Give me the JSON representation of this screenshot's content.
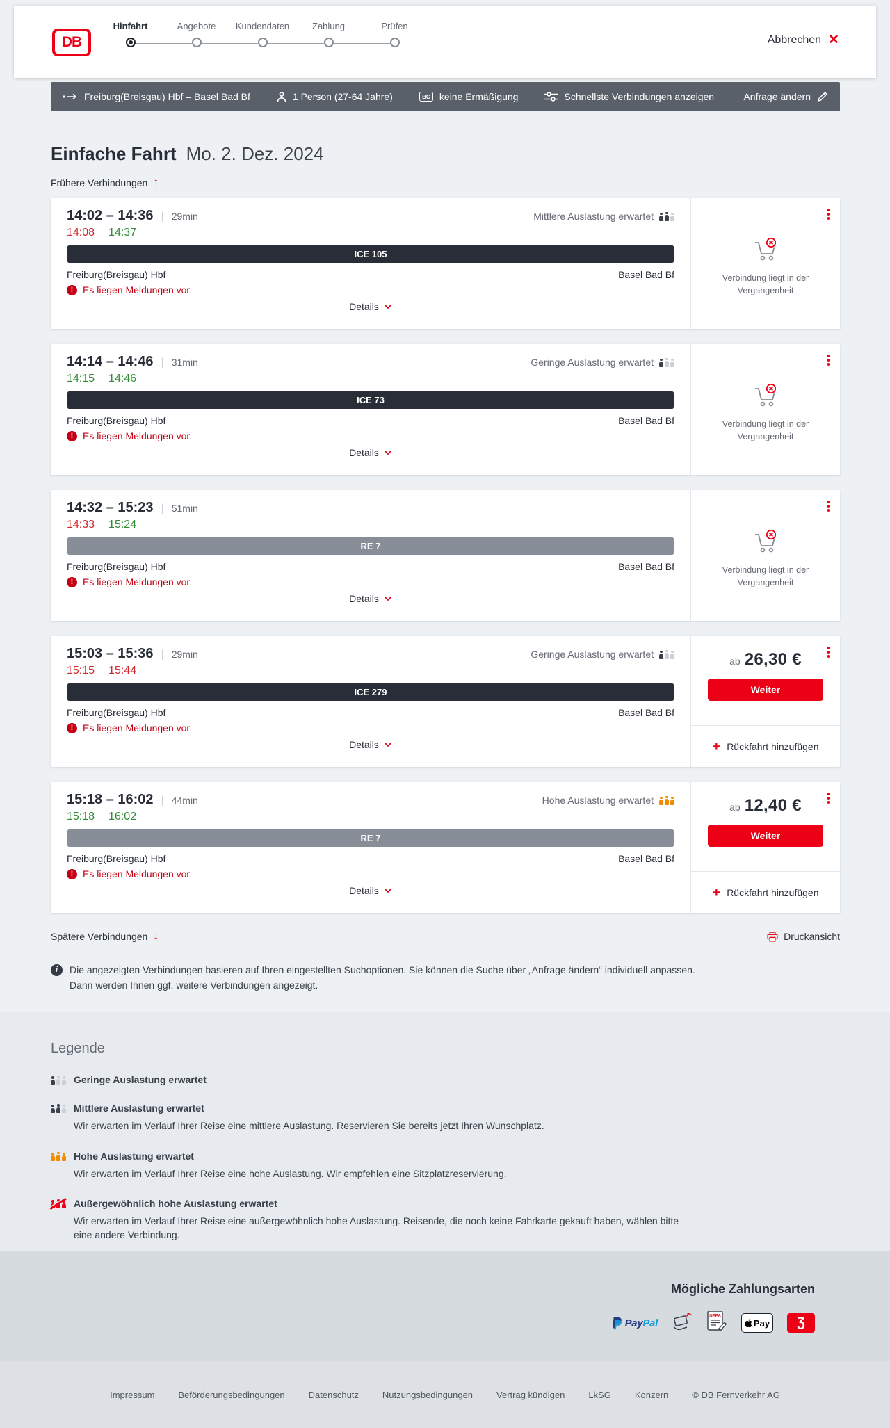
{
  "header": {
    "logo_text": "DB",
    "steps": [
      {
        "label": "Hinfahrt",
        "state": "active"
      },
      {
        "label": "Angebote",
        "state": "upcoming"
      },
      {
        "label": "Kundendaten",
        "state": "upcoming"
      },
      {
        "label": "Zahlung",
        "state": "upcoming"
      },
      {
        "label": "Prüfen",
        "state": "upcoming"
      }
    ],
    "cancel_label": "Abbrechen"
  },
  "journey_bar": {
    "route": "Freiburg(Breisgau) Hbf – Basel Bad Bf",
    "passengers": "1 Person (27-64 Jahre)",
    "discount": "keine Ermäßigung",
    "fastest_connections": "Schnellste Verbindungen anzeigen",
    "change_request": "Anfrage ändern"
  },
  "page": {
    "title": "Einfache Fahrt",
    "date": "Mo. 2. Dez. 2024",
    "earlier_connections": "Frühere Verbindungen",
    "later_connections": "Spätere Verbindungen",
    "print_view": "Druckansicht",
    "info_text": "Die angezeigten Verbindungen basieren auf Ihren eingestellten Suchoptionen. Sie können die Suche über „Anfrage ändern“ individuell anpassen. Dann werden Ihnen ggf. weitere Verbindungen angezeigt."
  },
  "labels": {
    "alert": "Es liegen Meldungen vor.",
    "details": "Details",
    "past_connection": "Verbindung liegt in der Vergangenheit",
    "price_prefix": "ab",
    "continue_button": "Weiter",
    "add_return": "Rückfahrt hinzufügen"
  },
  "connections": [
    {
      "time_range": "14:02 – 14:36",
      "duration": "29min",
      "occupancy": "Mittlere Auslastung erwartet",
      "occupancy_level": "medium",
      "realtime": {
        "departure": "14:08",
        "departure_status": "delayed",
        "arrival": "14:37",
        "arrival_status": "ontime"
      },
      "train": {
        "label": "ICE 105",
        "type": "ice"
      },
      "from": "Freiburg(Breisgau) Hbf",
      "to": "Basel Bad Bf",
      "panel": {
        "state": "past"
      }
    },
    {
      "time_range": "14:14 – 14:46",
      "duration": "31min",
      "occupancy": "Geringe Auslastung erwartet",
      "occupancy_level": "low",
      "realtime": {
        "departure": "14:15",
        "departure_status": "ontime",
        "arrival": "14:46",
        "arrival_status": "ontime"
      },
      "train": {
        "label": "ICE 73",
        "type": "ice"
      },
      "from": "Freiburg(Breisgau) Hbf",
      "to": "Basel Bad Bf",
      "panel": {
        "state": "past"
      }
    },
    {
      "time_range": "14:32 – 15:23",
      "duration": "51min",
      "occupancy": null,
      "occupancy_level": null,
      "realtime": {
        "departure": "14:33",
        "departure_status": "delayed",
        "arrival": "15:24",
        "arrival_status": "ontime"
      },
      "train": {
        "label": "RE 7",
        "type": "re"
      },
      "from": "Freiburg(Breisgau) Hbf",
      "to": "Basel Bad Bf",
      "panel": {
        "state": "past"
      }
    },
    {
      "time_range": "15:03 – 15:36",
      "duration": "29min",
      "occupancy": "Geringe Auslastung erwartet",
      "occupancy_level": "low",
      "realtime": {
        "departure": "15:15",
        "departure_status": "delayed",
        "arrival": "15:44",
        "arrival_status": "delayed"
      },
      "train": {
        "label": "ICE 279",
        "type": "ice"
      },
      "from": "Freiburg(Breisgau) Hbf",
      "to": "Basel Bad Bf",
      "panel": {
        "state": "bookable",
        "price": "26,30 €"
      }
    },
    {
      "time_range": "15:18 – 16:02",
      "duration": "44min",
      "occupancy": "Hohe Auslastung erwartet",
      "occupancy_level": "high",
      "realtime": {
        "departure": "15:18",
        "departure_status": "ontime",
        "arrival": "16:02",
        "arrival_status": "ontime"
      },
      "train": {
        "label": "RE 7",
        "type": "re"
      },
      "from": "Freiburg(Breisgau) Hbf",
      "to": "Basel Bad Bf",
      "panel": {
        "state": "bookable",
        "price": "12,40 €"
      }
    }
  ],
  "legend": {
    "title": "Legende",
    "items": [
      {
        "level": "low",
        "label": "Geringe Auslastung erwartet",
        "description": ""
      },
      {
        "level": "medium",
        "label": "Mittlere Auslastung erwartet",
        "description": "Wir erwarten im Verlauf Ihrer Reise eine mittlere Auslastung. Reservieren Sie bereits jetzt Ihren Wunschplatz."
      },
      {
        "level": "high",
        "label": "Hohe Auslastung erwartet",
        "description": "Wir erwarten im Verlauf Ihrer Reise eine hohe Auslastung. Wir empfehlen eine Sitzplatzreservierung."
      },
      {
        "level": "exceptional",
        "label": "Außergewöhnlich hohe Auslastung erwartet",
        "description": "Wir erwarten im Verlauf Ihrer Reise eine außergewöhnlich hohe Auslastung. Reisende, die noch keine Fahrkarte gekauft haben, wählen bitte eine andere Verbindung."
      }
    ]
  },
  "payments": {
    "title": "Mögliche Zahlungsarten",
    "paypal_word_1": "Pay",
    "paypal_word_2": "Pal",
    "apple_pay_label": "Pay",
    "voucher_glyph": "Ʒ",
    "methods": [
      "PayPal",
      "Kreditkarte",
      "SEPA-Lastschrift",
      "Apple Pay",
      "Gutschein"
    ]
  },
  "footer": {
    "links": [
      "Impressum",
      "Beförderungsbedingungen",
      "Datenschutz",
      "Nutzungsbedingungen",
      "Vertrag kündigen",
      "LkSG",
      "Konzern"
    ],
    "copyright": "© DB Fernverkehr AG"
  },
  "colors": {
    "brand_red": "#ec0016",
    "delay_red": "#d0262e",
    "ontime_green": "#2f8a33",
    "alert_red": "#c50014",
    "dark_bar": "#596069",
    "train_dark": "#282d37",
    "train_gray": "#888e98"
  }
}
